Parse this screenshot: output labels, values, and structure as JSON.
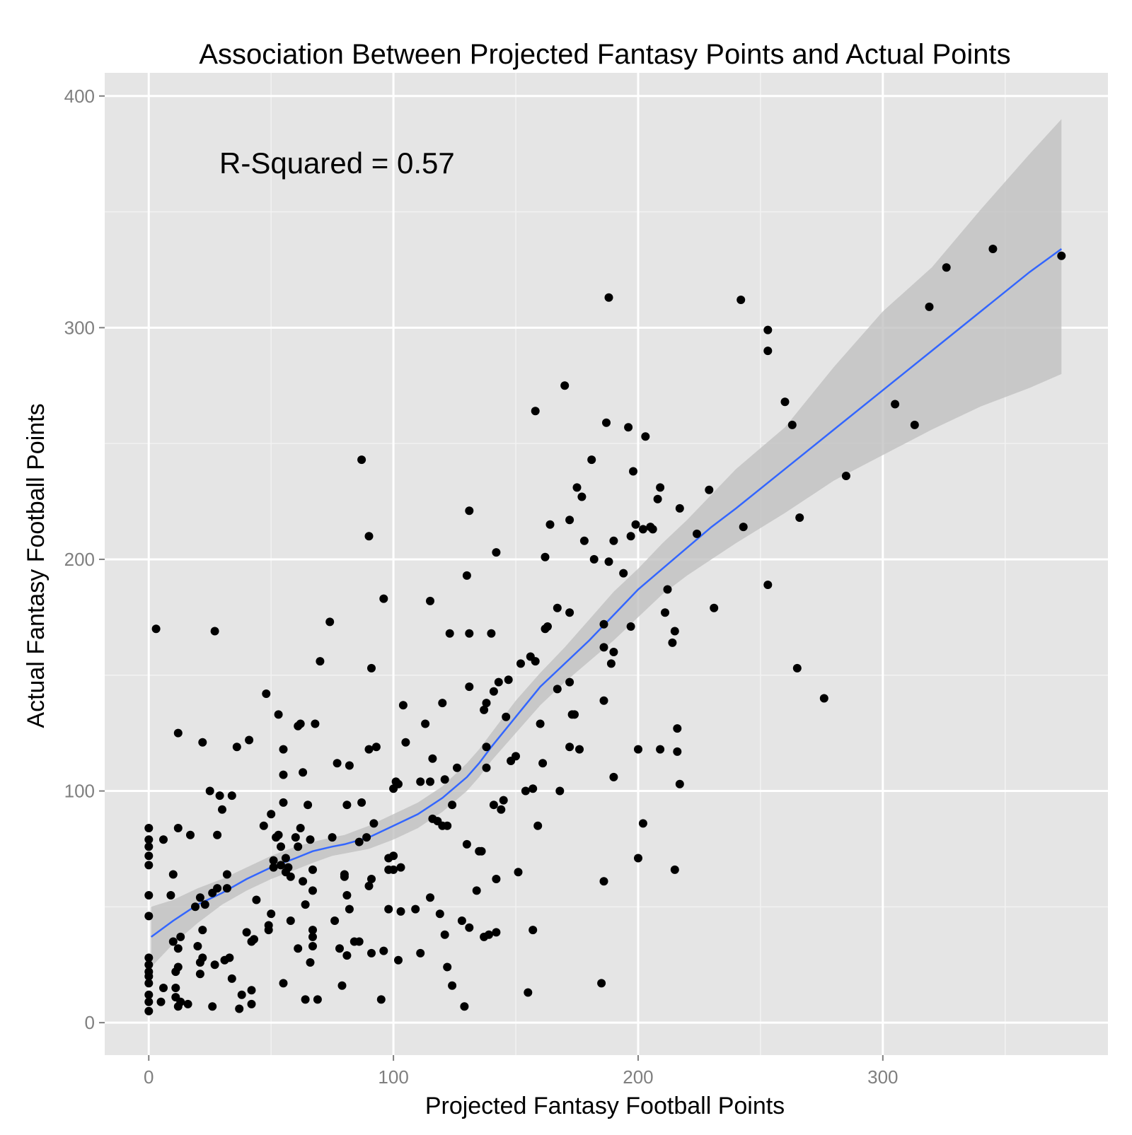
{
  "chart_data": {
    "type": "scatter",
    "title": "Association Between Projected Fantasy Points and Actual Points",
    "xlabel": "Projected Fantasy Football Points",
    "ylabel": "Actual Fantasy Football Points",
    "xlim": [
      -18,
      392
    ],
    "ylim": [
      -14,
      410
    ],
    "xticks": [
      0,
      100,
      200,
      300
    ],
    "yticks": [
      0,
      100,
      200,
      300,
      400
    ],
    "xtick_labels": [
      "0",
      "100",
      "200",
      "300"
    ],
    "ytick_labels": [
      "0",
      "100",
      "200",
      "300",
      "400"
    ],
    "grid": true,
    "annotation": "R-Squared = 0.57",
    "colors": {
      "panel": "#e5e5e5",
      "grid_major": "#ffffff",
      "grid_minor": "#f2f2f2",
      "points": "#000000",
      "smooth_line": "#3366ff",
      "ribbon": "#bdbdbd"
    },
    "points": [
      [
        0,
        5
      ],
      [
        0,
        9
      ],
      [
        0,
        12
      ],
      [
        0,
        17
      ],
      [
        0,
        20
      ],
      [
        0,
        22
      ],
      [
        0,
        25
      ],
      [
        0,
        28
      ],
      [
        0,
        46
      ],
      [
        0,
        55
      ],
      [
        0,
        68
      ],
      [
        0,
        72
      ],
      [
        0,
        76
      ],
      [
        0,
        79
      ],
      [
        0,
        84
      ],
      [
        3,
        170
      ],
      [
        5,
        9
      ],
      [
        6,
        15
      ],
      [
        6,
        79
      ],
      [
        9,
        55
      ],
      [
        10,
        64
      ],
      [
        10,
        35
      ],
      [
        11,
        11
      ],
      [
        11,
        15
      ],
      [
        11,
        22
      ],
      [
        12,
        24
      ],
      [
        12,
        125
      ],
      [
        12,
        84
      ],
      [
        12,
        32
      ],
      [
        12,
        7
      ],
      [
        13,
        9
      ],
      [
        13,
        37
      ],
      [
        16,
        8
      ],
      [
        17,
        81
      ],
      [
        19,
        50
      ],
      [
        20,
        33
      ],
      [
        21,
        21
      ],
      [
        21,
        26
      ],
      [
        21,
        54
      ],
      [
        22,
        28
      ],
      [
        22,
        121
      ],
      [
        22,
        40
      ],
      [
        23,
        51
      ],
      [
        25,
        100
      ],
      [
        26,
        7
      ],
      [
        26,
        56
      ],
      [
        27,
        169
      ],
      [
        27,
        25
      ],
      [
        28,
        81
      ],
      [
        28,
        58
      ],
      [
        29,
        98
      ],
      [
        30,
        92
      ],
      [
        31,
        27
      ],
      [
        32,
        58
      ],
      [
        32,
        64
      ],
      [
        33,
        28
      ],
      [
        34,
        98
      ],
      [
        34,
        19
      ],
      [
        36,
        119
      ],
      [
        37,
        6
      ],
      [
        38,
        12
      ],
      [
        40,
        39
      ],
      [
        41,
        122
      ],
      [
        42,
        8
      ],
      [
        42,
        14
      ],
      [
        42,
        35
      ],
      [
        43,
        36
      ],
      [
        44,
        53
      ],
      [
        47,
        85
      ],
      [
        48,
        142
      ],
      [
        49,
        40
      ],
      [
        49,
        42
      ],
      [
        50,
        90
      ],
      [
        50,
        47
      ],
      [
        51,
        70
      ],
      [
        51,
        67
      ],
      [
        52,
        80
      ],
      [
        53,
        81
      ],
      [
        53,
        133
      ],
      [
        54,
        76
      ],
      [
        54,
        68
      ],
      [
        55,
        118
      ],
      [
        55,
        107
      ],
      [
        55,
        17
      ],
      [
        55,
        95
      ],
      [
        56,
        71
      ],
      [
        56,
        65
      ],
      [
        57,
        67
      ],
      [
        58,
        63
      ],
      [
        58,
        44
      ],
      [
        60,
        80
      ],
      [
        61,
        128
      ],
      [
        61,
        76
      ],
      [
        61,
        32
      ],
      [
        62,
        84
      ],
      [
        62,
        129
      ],
      [
        63,
        108
      ],
      [
        63,
        61
      ],
      [
        64,
        10
      ],
      [
        64,
        51
      ],
      [
        65,
        94
      ],
      [
        66,
        79
      ],
      [
        66,
        26
      ],
      [
        67,
        33
      ],
      [
        67,
        66
      ],
      [
        67,
        40
      ],
      [
        67,
        37
      ],
      [
        67,
        57
      ],
      [
        68,
        129
      ],
      [
        69,
        10
      ],
      [
        70,
        156
      ],
      [
        74,
        173
      ],
      [
        75,
        80
      ],
      [
        76,
        44
      ],
      [
        77,
        112
      ],
      [
        78,
        32
      ],
      [
        79,
        16
      ],
      [
        80,
        64
      ],
      [
        80,
        63
      ],
      [
        81,
        55
      ],
      [
        81,
        94
      ],
      [
        81,
        29
      ],
      [
        82,
        111
      ],
      [
        82,
        49
      ],
      [
        84,
        35
      ],
      [
        86,
        35
      ],
      [
        86,
        78
      ],
      [
        87,
        243
      ],
      [
        87,
        95
      ],
      [
        89,
        80
      ],
      [
        90,
        210
      ],
      [
        90,
        118
      ],
      [
        90,
        59
      ],
      [
        91,
        30
      ],
      [
        91,
        62
      ],
      [
        91,
        153
      ],
      [
        92,
        86
      ],
      [
        93,
        119
      ],
      [
        95,
        10
      ],
      [
        96,
        183
      ],
      [
        96,
        31
      ],
      [
        98,
        49
      ],
      [
        98,
        66
      ],
      [
        98,
        71
      ],
      [
        100,
        72
      ],
      [
        100,
        66
      ],
      [
        100,
        101
      ],
      [
        101,
        104
      ],
      [
        102,
        27
      ],
      [
        102,
        103
      ],
      [
        103,
        67
      ],
      [
        103,
        48
      ],
      [
        104,
        137
      ],
      [
        105,
        121
      ],
      [
        109,
        49
      ],
      [
        111,
        30
      ],
      [
        111,
        104
      ],
      [
        113,
        129
      ],
      [
        115,
        54
      ],
      [
        115,
        104
      ],
      [
        115,
        182
      ],
      [
        116,
        114
      ],
      [
        116,
        88
      ],
      [
        118,
        87
      ],
      [
        119,
        47
      ],
      [
        120,
        138
      ],
      [
        120,
        85
      ],
      [
        121,
        38
      ],
      [
        121,
        105
      ],
      [
        122,
        24
      ],
      [
        122,
        85
      ],
      [
        123,
        168
      ],
      [
        124,
        16
      ],
      [
        124,
        94
      ],
      [
        126,
        110
      ],
      [
        128,
        44
      ],
      [
        129,
        7
      ],
      [
        130,
        77
      ],
      [
        130,
        193
      ],
      [
        131,
        221
      ],
      [
        131,
        145
      ],
      [
        131,
        168
      ],
      [
        131,
        41
      ],
      [
        134,
        57
      ],
      [
        135,
        74
      ],
      [
        136,
        74
      ],
      [
        137,
        37
      ],
      [
        137,
        135
      ],
      [
        138,
        110
      ],
      [
        138,
        138
      ],
      [
        138,
        119
      ],
      [
        139,
        38
      ],
      [
        140,
        168
      ],
      [
        141,
        94
      ],
      [
        141,
        143
      ],
      [
        142,
        39
      ],
      [
        142,
        62
      ],
      [
        142,
        203
      ],
      [
        143,
        147
      ],
      [
        144,
        92
      ],
      [
        145,
        96
      ],
      [
        146,
        132
      ],
      [
        147,
        148
      ],
      [
        148,
        113
      ],
      [
        150,
        115
      ],
      [
        151,
        65
      ],
      [
        152,
        155
      ],
      [
        154,
        100
      ],
      [
        155,
        13
      ],
      [
        156,
        158
      ],
      [
        157,
        101
      ],
      [
        157,
        40
      ],
      [
        158,
        156
      ],
      [
        158,
        264
      ],
      [
        159,
        85
      ],
      [
        160,
        129
      ],
      [
        161,
        112
      ],
      [
        162,
        170
      ],
      [
        162,
        201
      ],
      [
        163,
        171
      ],
      [
        164,
        215
      ],
      [
        167,
        144
      ],
      [
        167,
        179
      ],
      [
        168,
        100
      ],
      [
        170,
        275
      ],
      [
        172,
        147
      ],
      [
        172,
        177
      ],
      [
        172,
        119
      ],
      [
        172,
        217
      ],
      [
        173,
        133
      ],
      [
        174,
        133
      ],
      [
        175,
        231
      ],
      [
        176,
        118
      ],
      [
        177,
        227
      ],
      [
        178,
        208
      ],
      [
        181,
        243
      ],
      [
        182,
        200
      ],
      [
        185,
        17
      ],
      [
        186,
        172
      ],
      [
        186,
        61
      ],
      [
        186,
        139
      ],
      [
        186,
        162
      ],
      [
        187,
        259
      ],
      [
        188,
        313
      ],
      [
        188,
        199
      ],
      [
        189,
        155
      ],
      [
        190,
        160
      ],
      [
        190,
        106
      ],
      [
        190,
        208
      ],
      [
        194,
        194
      ],
      [
        196,
        257
      ],
      [
        197,
        171
      ],
      [
        197,
        210
      ],
      [
        198,
        238
      ],
      [
        199,
        215
      ],
      [
        200,
        71
      ],
      [
        200,
        118
      ],
      [
        202,
        86
      ],
      [
        202,
        213
      ],
      [
        203,
        253
      ],
      [
        205,
        214
      ],
      [
        206,
        213
      ],
      [
        208,
        226
      ],
      [
        209,
        118
      ],
      [
        209,
        231
      ],
      [
        211,
        177
      ],
      [
        212,
        187
      ],
      [
        214,
        164
      ],
      [
        215,
        169
      ],
      [
        215,
        66
      ],
      [
        216,
        127
      ],
      [
        216,
        117
      ],
      [
        217,
        103
      ],
      [
        217,
        222
      ],
      [
        224,
        211
      ],
      [
        229,
        230
      ],
      [
        231,
        179
      ],
      [
        242,
        312
      ],
      [
        243,
        214
      ],
      [
        253,
        299
      ],
      [
        253,
        290
      ],
      [
        253,
        189
      ],
      [
        260,
        268
      ],
      [
        263,
        258
      ],
      [
        265,
        153
      ],
      [
        266,
        218
      ],
      [
        276,
        140
      ],
      [
        285,
        236
      ],
      [
        305,
        267
      ],
      [
        313,
        258
      ],
      [
        319,
        309
      ],
      [
        326,
        326
      ],
      [
        345,
        334
      ],
      [
        373,
        331
      ]
    ],
    "smooth_line": [
      [
        1,
        37
      ],
      [
        10,
        44
      ],
      [
        20,
        51
      ],
      [
        30,
        56
      ],
      [
        40,
        62
      ],
      [
        50,
        67
      ],
      [
        60,
        71
      ],
      [
        67,
        74
      ],
      [
        75,
        76
      ],
      [
        80,
        77
      ],
      [
        90,
        80
      ],
      [
        100,
        85
      ],
      [
        110,
        90
      ],
      [
        120,
        97
      ],
      [
        130,
        106
      ],
      [
        135,
        112
      ],
      [
        140,
        119
      ],
      [
        150,
        132
      ],
      [
        160,
        145
      ],
      [
        170,
        155
      ],
      [
        180,
        165
      ],
      [
        190,
        176
      ],
      [
        200,
        187
      ],
      [
        210,
        196
      ],
      [
        220,
        205
      ],
      [
        230,
        214
      ],
      [
        240,
        222
      ],
      [
        260,
        239
      ],
      [
        280,
        256
      ],
      [
        300,
        273
      ],
      [
        320,
        290
      ],
      [
        340,
        307
      ],
      [
        360,
        324
      ],
      [
        373,
        334
      ]
    ],
    "ribbon_upper": [
      [
        1,
        50
      ],
      [
        10,
        53
      ],
      [
        20,
        58
      ],
      [
        30,
        62
      ],
      [
        40,
        67
      ],
      [
        50,
        72
      ],
      [
        60,
        76
      ],
      [
        67,
        78
      ],
      [
        75,
        80
      ],
      [
        80,
        81
      ],
      [
        90,
        85
      ],
      [
        100,
        90
      ],
      [
        110,
        95
      ],
      [
        120,
        102
      ],
      [
        130,
        112
      ],
      [
        135,
        118
      ],
      [
        140,
        125
      ],
      [
        150,
        139
      ],
      [
        160,
        151
      ],
      [
        170,
        162
      ],
      [
        180,
        174
      ],
      [
        190,
        186
      ],
      [
        200,
        196
      ],
      [
        210,
        207
      ],
      [
        220,
        217
      ],
      [
        230,
        228
      ],
      [
        240,
        239
      ],
      [
        260,
        257
      ],
      [
        280,
        283
      ],
      [
        300,
        307
      ],
      [
        320,
        326
      ],
      [
        340,
        351
      ],
      [
        360,
        375
      ],
      [
        373,
        390
      ]
    ],
    "ribbon_lower": [
      [
        1,
        24
      ],
      [
        10,
        34
      ],
      [
        20,
        43
      ],
      [
        30,
        51
      ],
      [
        40,
        57
      ],
      [
        50,
        62
      ],
      [
        60,
        66
      ],
      [
        67,
        69
      ],
      [
        75,
        72
      ],
      [
        80,
        73
      ],
      [
        90,
        75
      ],
      [
        100,
        79
      ],
      [
        110,
        84
      ],
      [
        120,
        91
      ],
      [
        130,
        100
      ],
      [
        135,
        106
      ],
      [
        140,
        113
      ],
      [
        150,
        125
      ],
      [
        160,
        137
      ],
      [
        170,
        147
      ],
      [
        180,
        156
      ],
      [
        190,
        165
      ],
      [
        200,
        175
      ],
      [
        210,
        185
      ],
      [
        220,
        193
      ],
      [
        230,
        200
      ],
      [
        240,
        207
      ],
      [
        260,
        220
      ],
      [
        280,
        234
      ],
      [
        300,
        245
      ],
      [
        320,
        256
      ],
      [
        340,
        266
      ],
      [
        360,
        274
      ],
      [
        373,
        280
      ]
    ]
  }
}
